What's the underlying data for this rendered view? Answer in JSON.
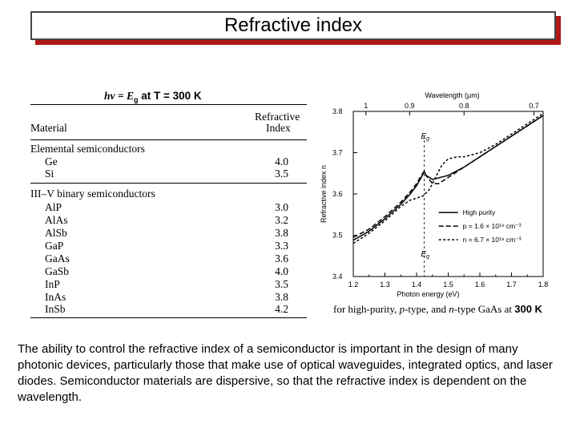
{
  "slide": {
    "title": "Refractive index",
    "body_text": "The ability to control the refractive index of a semiconductor is important in the design of many photonic devices, particularly those that make use of optical waveguides, integrated optics, and laser diodes. Semiconductor materials are dispersive, so that the refractive index is dependent on the wavelength."
  },
  "table": {
    "heading_math": "hν = E",
    "heading_sub": "g",
    "heading_rest": " at T = 300 K",
    "col_material": "Material",
    "col_index_1": "Refractive",
    "col_index_2": "Index",
    "groups": [
      {
        "name": "Elemental semiconductors",
        "rows": [
          {
            "material": "Ge",
            "index": "4.0"
          },
          {
            "material": "Si",
            "index": "3.5"
          }
        ]
      },
      {
        "name": "III–V binary semiconductors",
        "rows": [
          {
            "material": "AlP",
            "index": "3.0"
          },
          {
            "material": "AlAs",
            "index": "3.2"
          },
          {
            "material": "AlSb",
            "index": "3.8"
          },
          {
            "material": "GaP",
            "index": "3.3"
          },
          {
            "material": "GaAs",
            "index": "3.6"
          },
          {
            "material": "GaSb",
            "index": "4.0"
          },
          {
            "material": "InP",
            "index": "3.5"
          },
          {
            "material": "InAs",
            "index": "3.8"
          },
          {
            "material": "InSb",
            "index": "4.2"
          }
        ]
      }
    ]
  },
  "chart_data": {
    "type": "line",
    "xlabel": "Photon energy (eV)",
    "ylabel": "Refractive index n",
    "top_axis_label": "Wavelength (μm)",
    "xlim": [
      1.2,
      1.8
    ],
    "ylim": [
      3.4,
      3.8
    ],
    "x_ticks": [
      "1.2",
      "1.3",
      "1.4",
      "1.5",
      "1.6",
      "1.7",
      "1.8"
    ],
    "y_ticks": [
      "3.4",
      "3.5",
      "3.6",
      "3.7",
      "3.8"
    ],
    "top_ticks": [
      {
        "label": "1",
        "energy": 1.24
      },
      {
        "label": "0.9",
        "energy": 1.378
      },
      {
        "label": "0.8",
        "energy": 1.55
      },
      {
        "label": "0.7",
        "energy": 1.771
      }
    ],
    "eg_label": "E",
    "eg_sub": "g",
    "eg_energy": 1.424,
    "series": [
      {
        "name": "High purity",
        "style": "solid",
        "x": [
          1.2,
          1.25,
          1.3,
          1.35,
          1.38,
          1.4,
          1.415,
          1.424,
          1.43,
          1.45,
          1.5,
          1.55,
          1.6,
          1.65,
          1.7,
          1.75,
          1.8
        ],
        "y": [
          3.488,
          3.51,
          3.54,
          3.575,
          3.6,
          3.62,
          3.64,
          3.655,
          3.645,
          3.635,
          3.645,
          3.665,
          3.69,
          3.715,
          3.74,
          3.765,
          3.79
        ]
      },
      {
        "name": "p = 1.6 × 10¹⁹ cm⁻³",
        "style": "dashed",
        "x": [
          1.2,
          1.25,
          1.3,
          1.35,
          1.38,
          1.4,
          1.415,
          1.424,
          1.43,
          1.45,
          1.47,
          1.5,
          1.55,
          1.6,
          1.65,
          1.7,
          1.75,
          1.8
        ],
        "y": [
          3.495,
          3.515,
          3.545,
          3.58,
          3.605,
          3.625,
          3.645,
          3.655,
          3.645,
          3.625,
          3.625,
          3.64,
          3.665,
          3.69,
          3.715,
          3.74,
          3.765,
          3.79
        ]
      },
      {
        "name": "n = 6.7 × 10¹⁸ cm⁻³",
        "style": "fine-dashed",
        "x": [
          1.2,
          1.25,
          1.3,
          1.35,
          1.38,
          1.4,
          1.42,
          1.44,
          1.46,
          1.48,
          1.5,
          1.53,
          1.55,
          1.6,
          1.65,
          1.7,
          1.75,
          1.8
        ],
        "y": [
          3.48,
          3.505,
          3.535,
          3.57,
          3.585,
          3.59,
          3.595,
          3.61,
          3.64,
          3.67,
          3.685,
          3.69,
          3.69,
          3.7,
          3.72,
          3.745,
          3.77,
          3.795
        ]
      }
    ],
    "legend": [
      {
        "label": "High purity",
        "style": "solid"
      },
      {
        "label": "p = 1.6 × 10¹⁹ cm⁻³",
        "style": "dashed"
      },
      {
        "label": "n = 6.7 × 10¹⁸ cm⁻³",
        "style": "fine-dashed"
      }
    ],
    "legend_position": "bottom-right"
  },
  "caption": {
    "pre": "for high-purity, ",
    "p": "p",
    "mid": "-type, and ",
    "n": "n",
    "post": "-type GaAs at ",
    "temp": "300 K"
  },
  "colors": {
    "title_shadow": "#b01818",
    "title_border": "#444444"
  }
}
